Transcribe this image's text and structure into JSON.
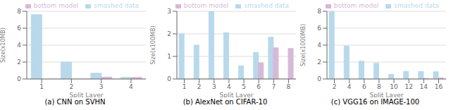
{
  "chart_data": [
    {
      "type": "bar",
      "title": "(a) CNN on SVHN",
      "xlabel": "Split Layer",
      "ylabel": "Size(x10MB)",
      "categories": [
        1,
        2,
        3,
        4
      ],
      "series": [
        {
          "name": "smashed data",
          "color": "#b8d8ec",
          "values": [
            7.6,
            2.0,
            0.68,
            0.18
          ]
        },
        {
          "name": "bottom model",
          "color": "#d8b8d8",
          "values": [
            0.0,
            0.0,
            0.22,
            0.18
          ]
        }
      ],
      "ylim": [
        0,
        8
      ],
      "yticks": [
        0,
        2,
        4,
        6,
        8
      ],
      "grid": true,
      "legend": "upper right"
    },
    {
      "type": "bar",
      "title": "(b) AlexNet on CIFAR-10",
      "xlabel": "Split Layer",
      "ylabel": "Size(x100MB)",
      "categories": [
        1,
        2,
        3,
        4,
        5,
        6,
        7,
        8
      ],
      "series": [
        {
          "name": "smashed data",
          "color": "#b8d8ec",
          "values": [
            2.0,
            1.5,
            3.0,
            2.05,
            0.58,
            1.18,
            1.85,
            0.0
          ]
        },
        {
          "name": "bottom model",
          "color": "#d8b8d8",
          "values": [
            0.0,
            0.0,
            0.0,
            0.0,
            0.0,
            0.72,
            1.38,
            1.35
          ]
        }
      ],
      "ylim": [
        0,
        3
      ],
      "yticks": [
        0,
        1,
        2,
        3
      ],
      "grid": true,
      "legend": "upper right"
    },
    {
      "type": "bar",
      "title": "(c) VGG16 on IMAGE-100",
      "xlabel": "Split Layer",
      "ylabel": "Size(x1000MB)",
      "categories": [
        2,
        4,
        6,
        8,
        10,
        12,
        14,
        16
      ],
      "series": [
        {
          "name": "smashed data",
          "color": "#b8d8ec",
          "values": [
            8.0,
            3.9,
            2.1,
            1.85,
            0.55,
            0.9,
            0.88,
            0.85
          ]
        },
        {
          "name": "bottom model",
          "color": "#d8b8d8",
          "values": [
            0.0,
            0.0,
            0.0,
            0.0,
            0.0,
            0.0,
            0.07,
            0.12
          ]
        }
      ],
      "ylim": [
        0,
        8
      ],
      "yticks": [
        0,
        2,
        4,
        6,
        8
      ],
      "grid": true,
      "legend": "upper right"
    }
  ]
}
